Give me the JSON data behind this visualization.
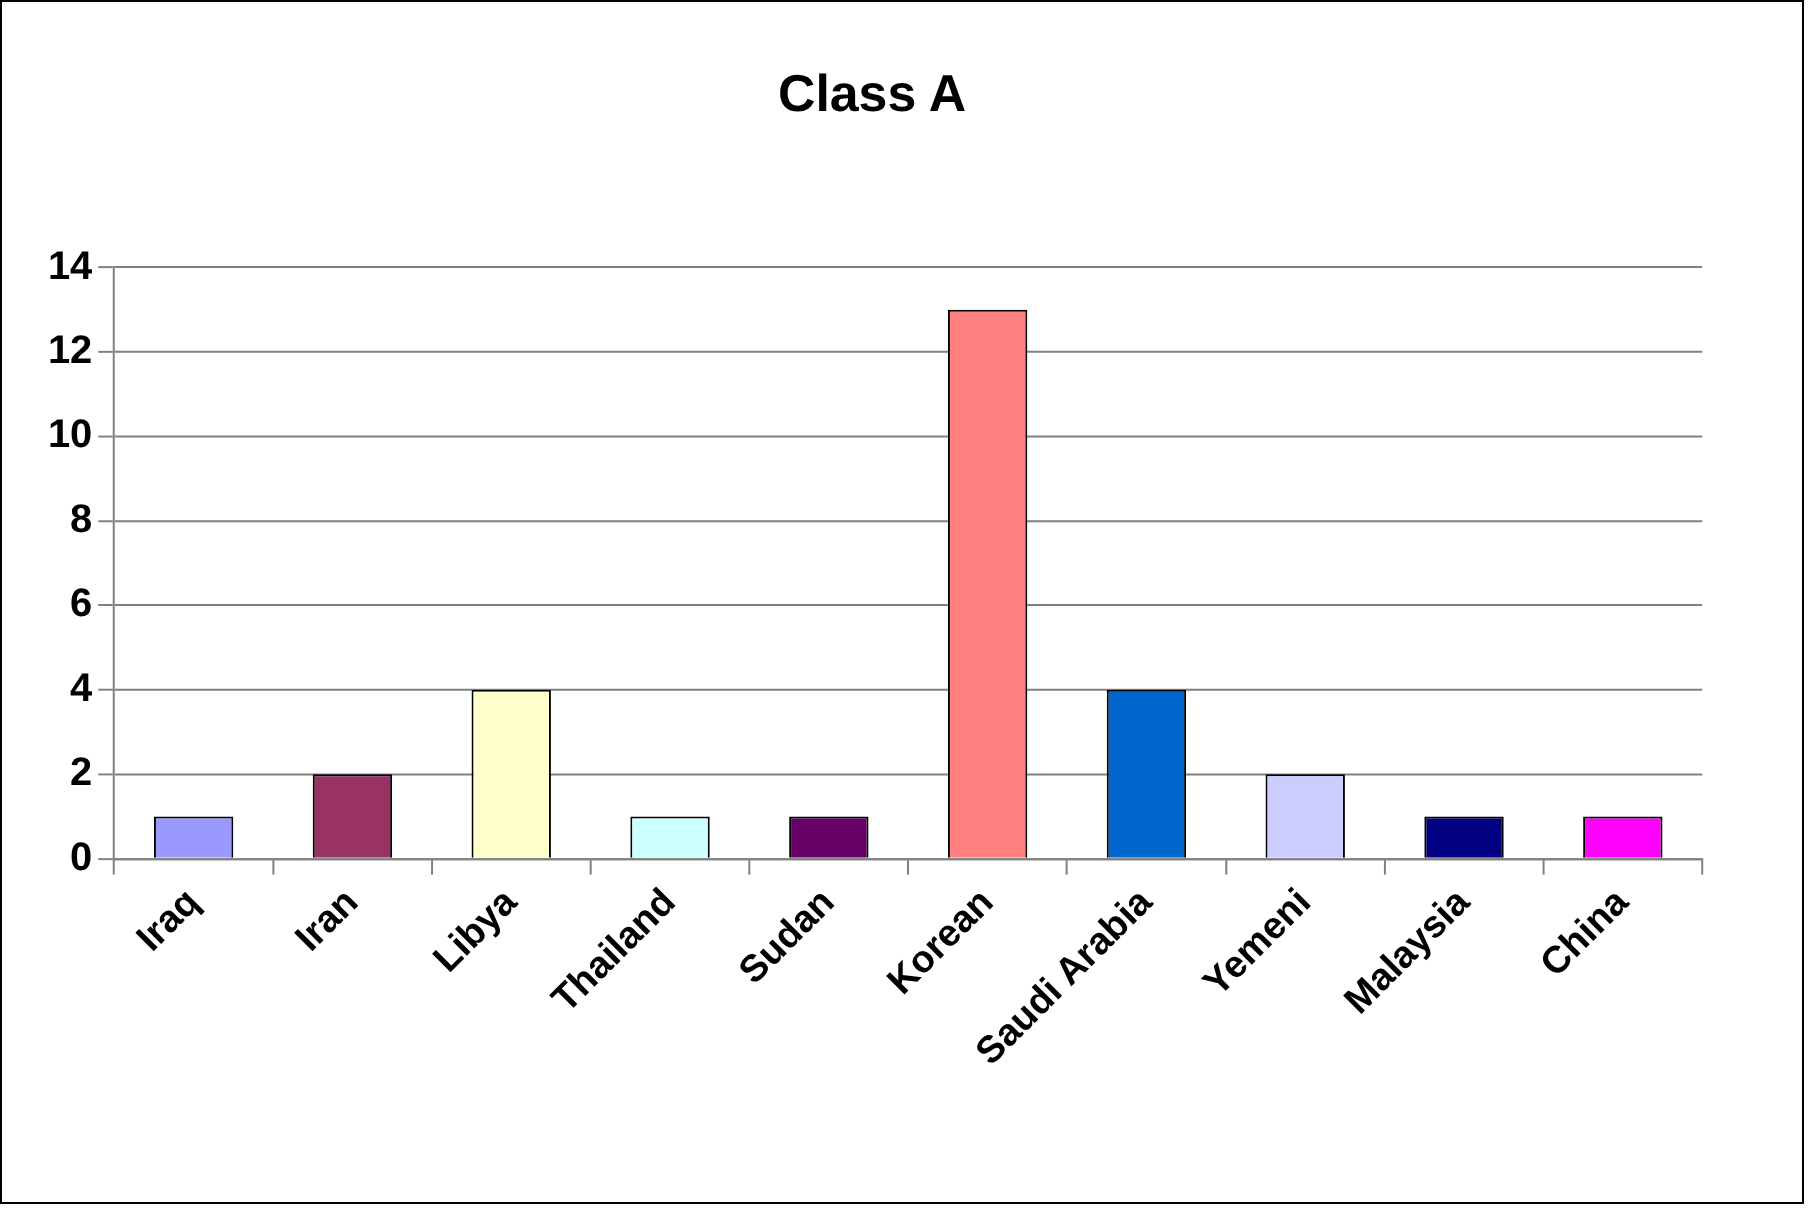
{
  "chart_data": {
    "type": "bar",
    "title": "Class A",
    "categories": [
      "Iraq",
      "Iran",
      "Libya",
      "Thailand",
      "Sudan",
      "Korean",
      "Saudi Arabia",
      "Yemeni",
      "Malaysia",
      "China"
    ],
    "values": [
      1,
      2,
      4,
      1,
      1,
      13,
      4,
      2,
      1,
      1
    ],
    "colors": [
      "#9999ff",
      "#993366",
      "#ffffcc",
      "#ccffff",
      "#660066",
      "#ff8080",
      "#0066cc",
      "#ccccff",
      "#000080",
      "#ff00ff"
    ],
    "ylim": [
      0,
      14
    ],
    "yticks": [
      0,
      2,
      4,
      6,
      8,
      10,
      12,
      14
    ],
    "grid": "y"
  }
}
